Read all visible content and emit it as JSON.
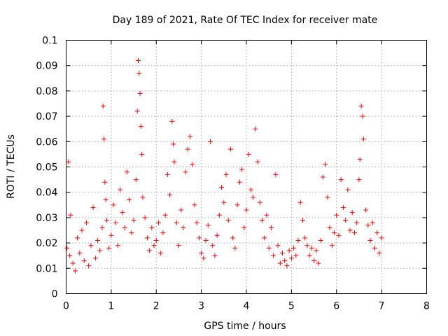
{
  "chart_data": {
    "type": "scatter",
    "title": "Day 189 of 2021, Rate Of TEC Index for receiver mate",
    "xlabel": "GPS time / hours",
    "ylabel": "ROTI / TECUs",
    "xlim": [
      0,
      8
    ],
    "ylim": [
      0,
      0.1
    ],
    "xticks": [
      "0",
      "1",
      "2",
      "3",
      "4",
      "5",
      "6",
      "7",
      "8"
    ],
    "yticks": [
      "0",
      "0.01",
      "0.02",
      "0.03",
      "0.04",
      "0.05",
      "0.06",
      "0.07",
      "0.08",
      "0.09",
      "0.1"
    ],
    "grid": true,
    "marker": "+",
    "marker_color": "#ff0000",
    "series": [
      {
        "name": "ROTI",
        "x": [
          0.02,
          0.05,
          0.08,
          0.1,
          0.15,
          0.2,
          0.25,
          0.3,
          0.35,
          0.4,
          0.45,
          0.5,
          0.55,
          0.6,
          0.65,
          0.7,
          0.75,
          0.8,
          0.82,
          0.84,
          0.86,
          0.88,
          0.9,
          0.95,
          1.0,
          1.05,
          1.1,
          1.15,
          1.2,
          1.25,
          1.3,
          1.35,
          1.4,
          1.45,
          1.5,
          1.55,
          1.58,
          1.6,
          1.62,
          1.64,
          1.66,
          1.68,
          1.7,
          1.75,
          1.8,
          1.85,
          1.9,
          1.95,
          2.0,
          2.05,
          2.1,
          2.15,
          2.2,
          2.25,
          2.3,
          2.35,
          2.38,
          2.4,
          2.45,
          2.5,
          2.55,
          2.6,
          2.65,
          2.7,
          2.75,
          2.8,
          2.85,
          2.9,
          2.95,
          3.0,
          3.05,
          3.1,
          3.15,
          3.2,
          3.25,
          3.3,
          3.35,
          3.4,
          3.45,
          3.5,
          3.55,
          3.6,
          3.65,
          3.7,
          3.75,
          3.8,
          3.85,
          3.9,
          3.95,
          4.0,
          4.05,
          4.1,
          4.15,
          4.2,
          4.25,
          4.3,
          4.35,
          4.4,
          4.45,
          4.5,
          4.55,
          4.6,
          4.65,
          4.7,
          4.75,
          4.8,
          4.85,
          4.9,
          4.95,
          5.0,
          5.05,
          5.1,
          5.15,
          5.2,
          5.25,
          5.3,
          5.35,
          5.4,
          5.45,
          5.5,
          5.55,
          5.6,
          5.65,
          5.7,
          5.75,
          5.8,
          5.85,
          5.9,
          5.95,
          6.0,
          6.05,
          6.1,
          6.15,
          6.2,
          6.25,
          6.3,
          6.35,
          6.4,
          6.45,
          6.5,
          6.52,
          6.55,
          6.58,
          6.6,
          6.65,
          6.7,
          6.75,
          6.8,
          6.85,
          6.9,
          6.95,
          7.0
        ],
        "y": [
          0.018,
          0.052,
          0.015,
          0.031,
          0.012,
          0.009,
          0.022,
          0.016,
          0.025,
          0.013,
          0.028,
          0.011,
          0.019,
          0.034,
          0.014,
          0.021,
          0.017,
          0.026,
          0.074,
          0.061,
          0.044,
          0.037,
          0.029,
          0.018,
          0.023,
          0.035,
          0.028,
          0.019,
          0.041,
          0.032,
          0.026,
          0.048,
          0.037,
          0.024,
          0.029,
          0.045,
          0.072,
          0.092,
          0.087,
          0.079,
          0.066,
          0.055,
          0.038,
          0.03,
          0.022,
          0.017,
          0.026,
          0.019,
          0.021,
          0.028,
          0.016,
          0.024,
          0.031,
          0.047,
          0.039,
          0.068,
          0.059,
          0.052,
          0.028,
          0.019,
          0.033,
          0.026,
          0.048,
          0.057,
          0.062,
          0.051,
          0.035,
          0.028,
          0.022,
          0.016,
          0.014,
          0.021,
          0.027,
          0.06,
          0.019,
          0.015,
          0.023,
          0.031,
          0.042,
          0.036,
          0.047,
          0.029,
          0.057,
          0.022,
          0.018,
          0.035,
          0.044,
          0.049,
          0.026,
          0.033,
          0.055,
          0.041,
          0.038,
          0.065,
          0.052,
          0.036,
          0.029,
          0.022,
          0.031,
          0.018,
          0.026,
          0.015,
          0.047,
          0.019,
          0.012,
          0.016,
          0.013,
          0.011,
          0.017,
          0.014,
          0.018,
          0.015,
          0.021,
          0.036,
          0.029,
          0.022,
          0.019,
          0.015,
          0.018,
          0.013,
          0.017,
          0.012,
          0.021,
          0.046,
          0.051,
          0.038,
          0.026,
          0.019,
          0.024,
          0.031,
          0.023,
          0.045,
          0.034,
          0.029,
          0.041,
          0.025,
          0.032,
          0.024,
          0.028,
          0.045,
          0.053,
          0.074,
          0.07,
          0.061,
          0.033,
          0.027,
          0.021,
          0.028,
          0.018,
          0.024,
          0.016,
          0.022
        ]
      }
    ]
  }
}
